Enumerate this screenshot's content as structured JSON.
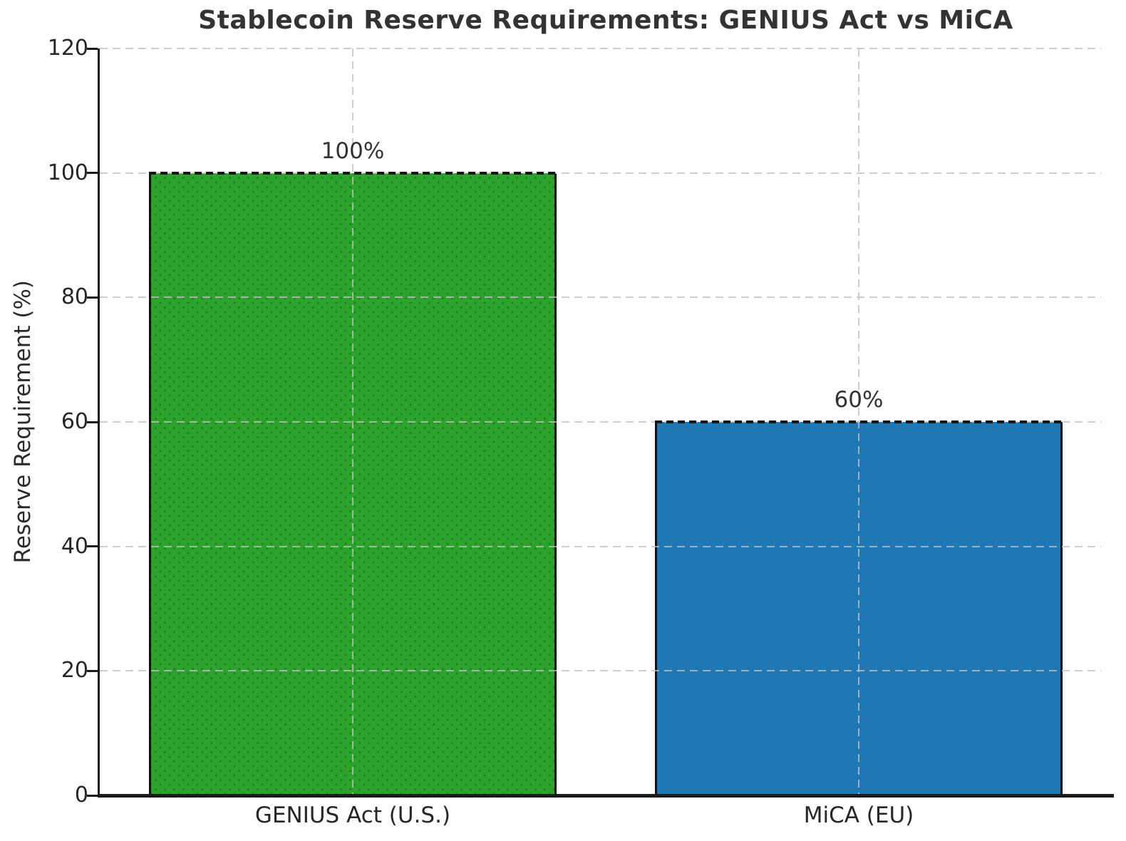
{
  "chart_data": {
    "type": "bar",
    "title": "Stablecoin Reserve Requirements: GENIUS Act vs MiCA",
    "ylabel": "Reserve Requirement (%)",
    "xlabel": "",
    "categories": [
      "GENIUS Act (U.S.)",
      "MiCA (EU)"
    ],
    "values": [
      100,
      60
    ],
    "value_labels": [
      "100%",
      "60%"
    ],
    "yticks": [
      0,
      20,
      40,
      60,
      80,
      100,
      120
    ],
    "ytick_labels": [
      "0",
      "20",
      "40",
      "60",
      "80",
      "100",
      "120"
    ],
    "ylim": [
      0,
      120
    ],
    "bar_colors": [
      "#2da32d",
      "#1f77b4"
    ],
    "bar_edge_color": "#111111",
    "grid": true,
    "grid_style": "dashed",
    "grid_color": "#c0c0c0",
    "legend_position": "none",
    "title_color": "#333333",
    "text_color": "#262626"
  }
}
